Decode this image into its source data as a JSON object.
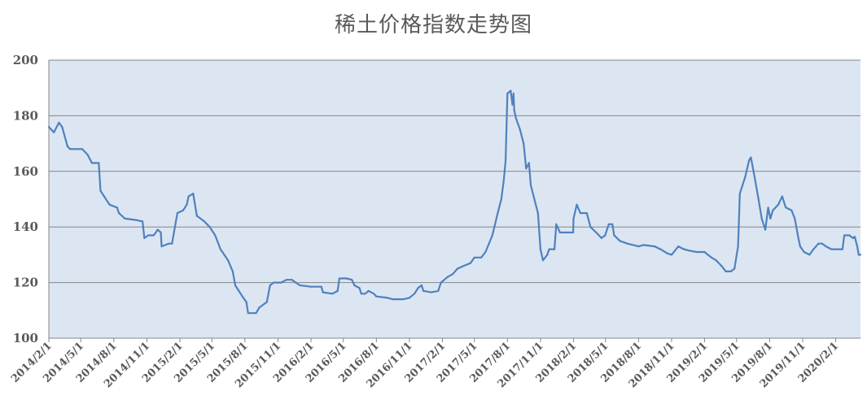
{
  "chart_data": {
    "type": "line",
    "title": "稀土价格指数走势图",
    "xlabel": "",
    "ylabel": "",
    "ylim": [
      100,
      200
    ],
    "yticks": [
      100,
      120,
      140,
      160,
      180,
      200
    ],
    "x_range": [
      "2014-02-01",
      "2020-04-10"
    ],
    "x_tick_labels": [
      "2014/2/1",
      "2014/5/1",
      "2014/8/1",
      "2014/11/1",
      "2015/2/1",
      "2015/5/1",
      "2015/8/1",
      "2015/11/1",
      "2016/2/1",
      "2016/5/1",
      "2016/8/1",
      "2016/11/1",
      "2017/2/1",
      "2017/5/1",
      "2017/8/1",
      "2017/11/1",
      "2018/2/1",
      "2018/5/1",
      "2018/8/1",
      "2018/11/1",
      "2019/2/1",
      "2019/5/1",
      "2019/8/1",
      "2019/11/1",
      "2020/2/1"
    ],
    "grid": true,
    "plot_background": "#dce6f2",
    "line_color": "#4f81bd",
    "series": [
      {
        "points": [
          [
            "2014-02-01",
            176
          ],
          [
            "2014-02-15",
            174
          ],
          [
            "2014-03-01",
            177.5
          ],
          [
            "2014-03-10",
            176
          ],
          [
            "2014-03-25",
            169
          ],
          [
            "2014-04-01",
            168
          ],
          [
            "2014-05-05",
            168
          ],
          [
            "2014-05-20",
            166
          ],
          [
            "2014-06-01",
            163
          ],
          [
            "2014-06-20",
            163
          ],
          [
            "2014-06-25",
            153
          ],
          [
            "2014-07-05",
            151
          ],
          [
            "2014-07-20",
            148
          ],
          [
            "2014-08-10",
            147
          ],
          [
            "2014-08-15",
            145
          ],
          [
            "2014-09-01",
            143
          ],
          [
            "2014-10-01",
            142.5
          ],
          [
            "2014-10-20",
            142
          ],
          [
            "2014-10-25",
            136
          ],
          [
            "2014-11-05",
            137
          ],
          [
            "2014-11-20",
            137
          ],
          [
            "2014-12-01",
            139
          ],
          [
            "2014-12-10",
            138
          ],
          [
            "2014-12-12",
            133
          ],
          [
            "2015-01-01",
            134
          ],
          [
            "2015-01-10",
            134
          ],
          [
            "2015-01-25",
            145
          ],
          [
            "2015-02-10",
            146
          ],
          [
            "2015-02-20",
            148
          ],
          [
            "2015-02-25",
            151
          ],
          [
            "2015-03-10",
            152
          ],
          [
            "2015-03-20",
            144
          ],
          [
            "2015-04-10",
            142
          ],
          [
            "2015-04-25",
            140
          ],
          [
            "2015-05-10",
            137
          ],
          [
            "2015-05-25",
            132
          ],
          [
            "2015-06-15",
            128
          ],
          [
            "2015-06-28",
            124
          ],
          [
            "2015-07-05",
            119
          ],
          [
            "2015-07-15",
            117
          ],
          [
            "2015-07-25",
            115
          ],
          [
            "2015-08-05",
            113
          ],
          [
            "2015-08-10",
            109
          ],
          [
            "2015-09-01",
            109
          ],
          [
            "2015-09-10",
            111
          ],
          [
            "2015-10-01",
            113
          ],
          [
            "2015-10-10",
            119
          ],
          [
            "2015-10-20",
            120
          ],
          [
            "2015-11-01",
            120
          ],
          [
            "2015-11-10",
            120
          ],
          [
            "2015-11-25",
            121
          ],
          [
            "2015-12-10",
            121
          ],
          [
            "2015-12-20",
            120
          ],
          [
            "2016-01-01",
            119
          ],
          [
            "2016-02-01",
            118.5
          ],
          [
            "2016-03-01",
            118.5
          ],
          [
            "2016-03-05",
            116.5
          ],
          [
            "2016-04-01",
            116
          ],
          [
            "2016-04-15",
            117
          ],
          [
            "2016-04-20",
            121.5
          ],
          [
            "2016-05-10",
            121.5
          ],
          [
            "2016-05-25",
            121
          ],
          [
            "2016-06-01",
            119
          ],
          [
            "2016-06-15",
            118
          ],
          [
            "2016-06-20",
            116
          ],
          [
            "2016-07-01",
            116
          ],
          [
            "2016-07-10",
            117
          ],
          [
            "2016-07-25",
            116
          ],
          [
            "2016-08-01",
            115
          ],
          [
            "2016-09-01",
            114.5
          ],
          [
            "2016-09-15",
            114
          ],
          [
            "2016-10-15",
            114
          ],
          [
            "2016-11-01",
            114.5
          ],
          [
            "2016-11-15",
            116
          ],
          [
            "2016-11-25",
            118
          ],
          [
            "2016-12-05",
            119
          ],
          [
            "2016-12-10",
            117
          ],
          [
            "2017-01-01",
            116.5
          ],
          [
            "2017-01-20",
            117
          ],
          [
            "2017-01-28",
            120
          ],
          [
            "2017-02-15",
            122
          ],
          [
            "2017-03-01",
            123
          ],
          [
            "2017-03-15",
            125
          ],
          [
            "2017-04-01",
            126
          ],
          [
            "2017-04-20",
            127
          ],
          [
            "2017-05-01",
            129
          ],
          [
            "2017-05-20",
            129
          ],
          [
            "2017-06-01",
            131
          ],
          [
            "2017-06-20",
            137
          ],
          [
            "2017-07-05",
            145
          ],
          [
            "2017-07-15",
            150
          ],
          [
            "2017-07-22",
            157
          ],
          [
            "2017-07-27",
            164
          ],
          [
            "2017-08-01",
            188
          ],
          [
            "2017-08-10",
            189
          ],
          [
            "2017-08-15",
            184
          ],
          [
            "2017-08-18",
            188
          ],
          [
            "2017-08-20",
            182
          ],
          [
            "2017-08-25",
            179
          ],
          [
            "2017-09-05",
            175
          ],
          [
            "2017-09-15",
            170
          ],
          [
            "2017-09-22",
            161
          ],
          [
            "2017-09-30",
            163
          ],
          [
            "2017-10-05",
            155
          ],
          [
            "2017-10-15",
            150
          ],
          [
            "2017-10-25",
            145
          ],
          [
            "2017-11-01",
            132
          ],
          [
            "2017-11-08",
            128
          ],
          [
            "2017-11-20",
            130
          ],
          [
            "2017-11-25",
            132
          ],
          [
            "2017-12-10",
            132
          ],
          [
            "2017-12-15",
            141
          ],
          [
            "2017-12-25",
            138
          ],
          [
            "2018-01-31",
            138
          ],
          [
            "2018-02-01",
            143
          ],
          [
            "2018-02-10",
            148
          ],
          [
            "2018-02-20",
            145
          ],
          [
            "2018-03-10",
            145
          ],
          [
            "2018-03-20",
            140
          ],
          [
            "2018-04-05",
            138
          ],
          [
            "2018-04-20",
            136
          ],
          [
            "2018-04-30",
            137
          ],
          [
            "2018-05-10",
            141
          ],
          [
            "2018-05-20",
            141
          ],
          [
            "2018-05-25",
            137
          ],
          [
            "2018-06-10",
            135
          ],
          [
            "2018-07-01",
            134
          ],
          [
            "2018-08-01",
            133
          ],
          [
            "2018-08-15",
            133.5
          ],
          [
            "2018-09-15",
            133
          ],
          [
            "2018-10-01",
            132
          ],
          [
            "2018-10-20",
            130.5
          ],
          [
            "2018-11-01",
            130
          ],
          [
            "2018-11-20",
            133
          ],
          [
            "2018-12-05",
            132
          ],
          [
            "2018-12-20",
            131.5
          ],
          [
            "2019-01-10",
            131
          ],
          [
            "2019-02-01",
            131
          ],
          [
            "2019-02-10",
            130
          ],
          [
            "2019-02-20",
            129
          ],
          [
            "2019-03-05",
            128
          ],
          [
            "2019-03-20",
            126
          ],
          [
            "2019-04-01",
            124
          ],
          [
            "2019-04-15",
            124
          ],
          [
            "2019-04-25",
            125
          ],
          [
            "2019-05-05",
            133
          ],
          [
            "2019-05-10",
            152
          ],
          [
            "2019-05-15",
            154
          ],
          [
            "2019-05-25",
            158
          ],
          [
            "2019-06-05",
            164
          ],
          [
            "2019-06-10",
            165
          ],
          [
            "2019-06-20",
            158
          ],
          [
            "2019-07-01",
            150
          ],
          [
            "2019-07-10",
            143
          ],
          [
            "2019-07-20",
            139
          ],
          [
            "2019-07-28",
            147
          ],
          [
            "2019-08-03",
            143
          ],
          [
            "2019-08-10",
            146
          ],
          [
            "2019-08-25",
            148
          ],
          [
            "2019-09-05",
            151
          ],
          [
            "2019-09-15",
            147
          ],
          [
            "2019-10-01",
            146
          ],
          [
            "2019-10-10",
            143
          ],
          [
            "2019-10-20",
            136
          ],
          [
            "2019-10-25",
            133
          ],
          [
            "2019-11-05",
            131
          ],
          [
            "2019-11-20",
            130
          ],
          [
            "2019-12-01",
            132
          ],
          [
            "2019-12-15",
            134
          ],
          [
            "2019-12-25",
            134
          ],
          [
            "2020-01-05",
            133
          ],
          [
            "2020-01-20",
            132
          ],
          [
            "2020-02-05",
            132
          ],
          [
            "2020-02-20",
            132
          ],
          [
            "2020-02-25",
            137
          ],
          [
            "2020-03-10",
            137
          ],
          [
            "2020-03-20",
            136
          ],
          [
            "2020-03-25",
            136.5
          ],
          [
            "2020-04-01",
            133
          ],
          [
            "2020-04-05",
            130
          ],
          [
            "2020-04-10",
            130
          ]
        ]
      }
    ]
  }
}
